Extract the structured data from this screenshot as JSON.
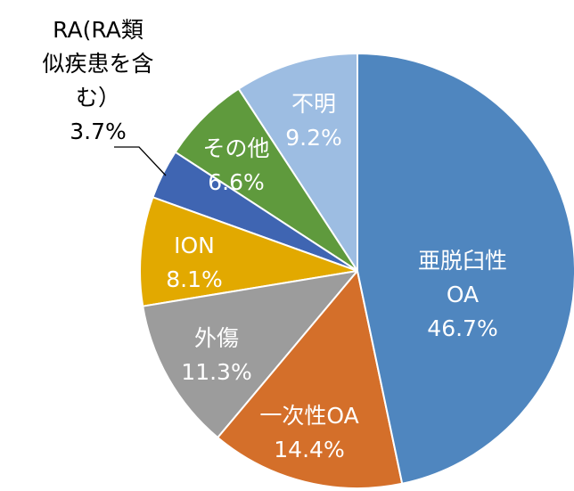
{
  "chart_data": {
    "type": "pie",
    "categories": [
      "亜脱臼性\nOA",
      "一次性OA",
      "外傷",
      "ION",
      "RA(RA類\n似疾患を含\nむ）",
      "その他",
      "不明"
    ],
    "values": [
      46.7,
      14.4,
      11.3,
      8.1,
      3.7,
      6.6,
      9.2
    ],
    "value_labels": [
      "46.7%",
      "14.4%",
      "11.3%",
      "8.1%",
      "3.7%",
      "6.6%",
      "9.2%"
    ],
    "colors": [
      "#4f86bf",
      "#d46f2a",
      "#9c9c9c",
      "#e2a900",
      "#3f65b2",
      "#5f9a3d",
      "#9dbde2"
    ]
  }
}
